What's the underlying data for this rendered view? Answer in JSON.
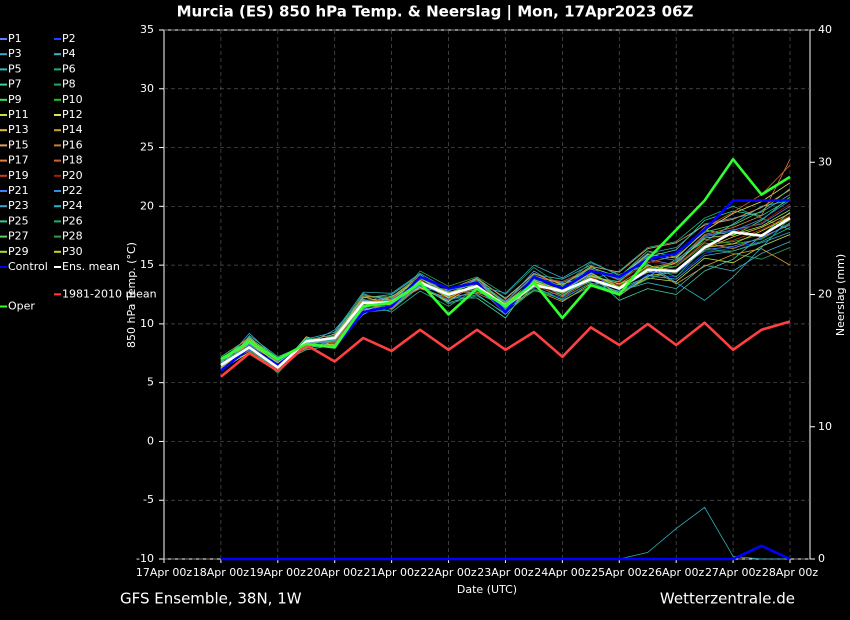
{
  "chart_data": {
    "type": "line",
    "title": "Murcia  (ES)  850 hPa Temp. & Neerslag | Mon, 17Apr2023 06Z",
    "xlabel": "Date (UTC)",
    "ylabel": "850 hPa Temp. (°C)",
    "y2label": "Neerslag (mm)",
    "footer_left": "GFS Ensemble, 38N, 1W",
    "footer_right": "Wetterzentrale.de",
    "categories": [
      "17Apr 00z",
      null,
      "18Apr 00z",
      null,
      "19Apr 00z",
      null,
      "20Apr 00z",
      null,
      "21Apr 00z",
      null,
      "22Apr 00z",
      null,
      "23Apr 00z",
      null,
      "24Apr 00z",
      null,
      "25Apr 00z",
      null,
      "26Apr 00z",
      null,
      "27Apr 00z",
      null,
      "28Apr 00z"
    ],
    "ylim": [
      -10,
      35
    ],
    "yticks": [
      -10,
      -5,
      0,
      5,
      10,
      15,
      20,
      25,
      30,
      35
    ],
    "y2lim": [
      0,
      40
    ],
    "y2ticks": [
      0,
      10,
      20,
      30,
      40
    ],
    "grid": true,
    "series": [
      {
        "name": "P1",
        "color": "#5b7fff",
        "values": [
          null,
          null,
          6.2,
          8.4,
          6.8,
          8.0,
          9.0,
          12.0,
          12.2,
          13.0,
          12.8,
          13.8,
          11.0,
          14.0,
          13.5,
          14.5,
          13.8,
          15.5,
          15.0,
          17.5,
          18.0,
          18.5,
          20.0
        ]
      },
      {
        "name": "P2",
        "color": "#2040ff",
        "values": [
          null,
          null,
          6.8,
          7.8,
          6.2,
          8.6,
          8.2,
          11.2,
          11.5,
          14.0,
          12.0,
          12.8,
          12.0,
          13.0,
          12.2,
          13.5,
          12.5,
          14.2,
          14.0,
          16.0,
          16.5,
          17.0,
          18.2
        ]
      },
      {
        "name": "P3",
        "color": "#4aa0d0",
        "values": [
          null,
          null,
          6.5,
          8.5,
          7.0,
          8.0,
          9.2,
          12.5,
          12.0,
          13.8,
          13.0,
          13.5,
          11.8,
          14.5,
          13.0,
          14.8,
          14.0,
          16.0,
          16.5,
          18.5,
          19.0,
          19.5,
          21.0
        ]
      },
      {
        "name": "P4",
        "color": "#3fb0c0",
        "values": [
          null,
          null,
          7.0,
          8.2,
          6.0,
          8.8,
          8.0,
          11.0,
          11.2,
          13.2,
          11.8,
          12.5,
          10.8,
          13.2,
          12.0,
          13.2,
          12.8,
          13.5,
          13.0,
          15.0,
          14.5,
          16.0,
          17.0
        ]
      },
      {
        "name": "P5",
        "color": "#30c0c0",
        "values": [
          null,
          null,
          6.0,
          9.0,
          7.2,
          8.2,
          9.5,
          12.2,
          12.5,
          14.2,
          12.5,
          13.8,
          12.2,
          14.2,
          13.8,
          15.0,
          13.0,
          14.0,
          15.5,
          17.0,
          18.5,
          20.0,
          20.5
        ]
      },
      {
        "name": "P6",
        "color": "#20b080",
        "values": [
          null,
          null,
          6.6,
          7.5,
          6.4,
          8.5,
          8.8,
          11.8,
          11.0,
          12.8,
          11.5,
          13.0,
          11.2,
          12.8,
          12.5,
          13.8,
          14.5,
          16.5,
          17.0,
          19.0,
          20.0,
          19.0,
          18.0
        ]
      },
      {
        "name": "P7",
        "color": "#40d0a0",
        "values": [
          null,
          null,
          7.2,
          8.8,
          6.6,
          7.8,
          8.2,
          10.8,
          12.0,
          13.5,
          12.2,
          12.2,
          10.5,
          13.8,
          12.8,
          14.2,
          12.0,
          13.0,
          12.5,
          14.5,
          15.5,
          17.5,
          19.5
        ]
      },
      {
        "name": "P8",
        "color": "#30a060",
        "values": [
          null,
          null,
          6.4,
          8.0,
          5.8,
          8.4,
          9.0,
          12.6,
          11.6,
          14.5,
          13.2,
          14.0,
          12.5,
          14.8,
          13.2,
          15.2,
          14.2,
          15.0,
          14.0,
          16.5,
          16.0,
          15.5,
          16.5
        ]
      },
      {
        "name": "P9",
        "color": "#40e060",
        "values": [
          null,
          null,
          6.8,
          8.6,
          6.8,
          8.2,
          8.6,
          11.4,
          12.4,
          13.2,
          12.0,
          13.4,
          11.6,
          13.6,
          12.6,
          13.6,
          13.6,
          15.6,
          16.0,
          18.0,
          17.5,
          18.8,
          20.8
        ]
      },
      {
        "name": "P10",
        "color": "#20c020",
        "values": [
          null,
          null,
          6.3,
          7.9,
          6.3,
          8.7,
          8.4,
          11.6,
          11.4,
          13.6,
          12.6,
          12.9,
          11.4,
          13.1,
          13.1,
          14.4,
          13.0,
          14.6,
          15.2,
          17.2,
          16.8,
          17.2,
          18.6
        ]
      },
      {
        "name": "P11",
        "color": "#c0e040",
        "values": [
          null,
          null,
          6.9,
          8.3,
          6.7,
          8.1,
          8.9,
          11.9,
          12.1,
          13.9,
          12.4,
          13.1,
          11.7,
          13.7,
          12.4,
          13.9,
          12.6,
          13.9,
          13.6,
          15.6,
          15.2,
          16.6,
          17.6
        ]
      },
      {
        "name": "P12",
        "color": "#e0e060",
        "values": [
          null,
          null,
          6.1,
          7.6,
          6.1,
          8.9,
          8.1,
          11.1,
          11.9,
          13.1,
          11.9,
          13.6,
          11.1,
          13.4,
          12.9,
          14.6,
          13.9,
          15.9,
          15.6,
          17.9,
          19.4,
          20.4,
          22.0
        ]
      },
      {
        "name": "P13",
        "color": "#e0c040",
        "values": [
          null,
          null,
          6.7,
          8.7,
          6.9,
          8.3,
          8.7,
          12.3,
          11.7,
          13.4,
          12.7,
          12.7,
          11.9,
          14.1,
          13.4,
          14.1,
          12.4,
          14.1,
          14.4,
          16.4,
          17.4,
          18.2,
          19.4
        ]
      },
      {
        "name": "P14",
        "color": "#d0a030",
        "values": [
          null,
          null,
          7.1,
          8.1,
          6.5,
          8.0,
          8.3,
          11.3,
          12.3,
          14.1,
          12.1,
          13.3,
          11.3,
          12.9,
          11.9,
          13.4,
          13.4,
          14.9,
          13.4,
          14.9,
          15.9,
          16.4,
          15.0
        ]
      },
      {
        "name": "P15",
        "color": "#e0a060",
        "values": [
          null,
          null,
          6.4,
          8.4,
          6.2,
          8.6,
          9.1,
          12.1,
          11.3,
          13.3,
          12.9,
          13.9,
          12.1,
          14.3,
          13.3,
          14.9,
          14.4,
          16.4,
          16.9,
          18.4,
          18.9,
          19.9,
          21.4
        ]
      },
      {
        "name": "P16",
        "color": "#c08040",
        "values": [
          null,
          null,
          6.6,
          7.7,
          6.6,
          8.4,
          8.5,
          11.7,
          12.0,
          13.7,
          12.3,
          12.6,
          11.5,
          13.3,
          12.3,
          13.7,
          13.1,
          14.4,
          14.9,
          16.9,
          16.4,
          17.4,
          18.4
        ]
      },
      {
        "name": "P17",
        "color": "#e08040",
        "values": [
          null,
          null,
          6.9,
          8.9,
          6.8,
          7.9,
          8.6,
          11.2,
          11.8,
          13.0,
          12.2,
          13.2,
          10.9,
          13.9,
          13.0,
          14.3,
          12.9,
          14.7,
          15.3,
          17.6,
          18.2,
          19.2,
          24.0
        ]
      },
      {
        "name": "P18",
        "color": "#d06030",
        "values": [
          null,
          null,
          6.2,
          8.2,
          6.3,
          8.5,
          8.9,
          12.4,
          12.2,
          14.0,
          12.6,
          13.7,
          11.9,
          14.0,
          13.6,
          14.7,
          13.7,
          15.2,
          15.8,
          18.2,
          19.5,
          21.0,
          23.5
        ]
      },
      {
        "name": "P19",
        "color": "#c04020",
        "values": [
          null,
          null,
          6.5,
          8.0,
          6.5,
          8.3,
          8.4,
          11.5,
          11.6,
          13.5,
          12.5,
          13.0,
          11.5,
          13.5,
          12.7,
          14.0,
          13.3,
          14.6,
          14.6,
          16.6,
          17.1,
          18.0,
          19.2
        ]
      },
      {
        "name": "P20",
        "color": "#a02010",
        "values": [
          null,
          null,
          7.0,
          8.5,
          6.7,
          8.1,
          8.8,
          11.9,
          12.0,
          13.8,
          12.1,
          13.4,
          11.8,
          13.2,
          12.5,
          13.9,
          13.5,
          15.3,
          15.0,
          17.0,
          17.8,
          18.6,
          20.2
        ]
      },
      {
        "name": "P21",
        "color": "#4080ff",
        "values": [
          null,
          null,
          6.3,
          8.3,
          6.4,
          8.6,
          8.3,
          11.3,
          11.5,
          13.3,
          12.4,
          13.1,
          11.3,
          13.6,
          12.9,
          14.2,
          13.0,
          14.4,
          14.3,
          16.3,
          16.6,
          17.3,
          18.5
        ]
      },
      {
        "name": "P22",
        "color": "#3090e0",
        "values": [
          null,
          null,
          6.7,
          7.8,
          6.8,
          8.2,
          8.7,
          11.6,
          12.1,
          13.6,
          12.8,
          13.6,
          11.9,
          14.1,
          13.1,
          14.6,
          13.8,
          15.8,
          15.4,
          17.4,
          17.9,
          18.9,
          20.5
        ]
      },
      {
        "name": "P23",
        "color": "#40a0d0",
        "values": [
          null,
          null,
          6.4,
          9.2,
          6.9,
          8.4,
          8.6,
          12.0,
          11.7,
          13.2,
          12.0,
          12.9,
          11.2,
          13.4,
          12.6,
          13.7,
          12.7,
          14.1,
          13.8,
          15.8,
          16.2,
          16.9,
          17.8
        ]
      },
      {
        "name": "P24",
        "color": "#30b0c0",
        "values": [
          null,
          null,
          6.8,
          8.1,
          6.0,
          8.7,
          9.3,
          12.7,
          12.6,
          14.3,
          12.9,
          13.3,
          12.6,
          15.0,
          13.9,
          15.3,
          14.1,
          15.1,
          13.5,
          12.0,
          14.0,
          16.5,
          19.0
        ],
        "precip": [
          null,
          null,
          0,
          0,
          0,
          0,
          0,
          0,
          0,
          0,
          0,
          0,
          0,
          0,
          0,
          0,
          0,
          0.5,
          2.3,
          3.9,
          0.2,
          0,
          0
        ]
      },
      {
        "name": "P25",
        "color": "#30d0a0",
        "values": [
          null,
          null,
          6.2,
          8.6,
          6.6,
          8.0,
          8.2,
          11.4,
          11.9,
          13.7,
          12.3,
          13.9,
          11.6,
          13.8,
          12.4,
          14.0,
          13.6,
          15.7,
          16.3,
          18.8,
          19.6,
          19.2,
          20.6
        ]
      },
      {
        "name": "P26",
        "color": "#20b070",
        "values": [
          null,
          null,
          6.9,
          7.7,
          6.2,
          8.8,
          8.5,
          11.1,
          11.4,
          13.4,
          11.7,
          12.4,
          10.9,
          12.9,
          12.1,
          13.5,
          12.6,
          13.8,
          14.6,
          16.2,
          16.2,
          17.0,
          18.2
        ]
      },
      {
        "name": "P27",
        "color": "#60d060",
        "values": [
          null,
          null,
          6.5,
          8.8,
          7.1,
          8.1,
          9.0,
          12.3,
          12.3,
          13.9,
          12.6,
          13.5,
          11.8,
          13.7,
          13.3,
          14.8,
          14.0,
          16.2,
          15.7,
          17.8,
          18.4,
          19.6,
          21.5
        ]
      },
      {
        "name": "P28",
        "color": "#30a040",
        "values": [
          null,
          null,
          6.6,
          8.2,
          6.4,
          8.5,
          8.7,
          11.8,
          11.8,
          13.5,
          12.4,
          13.2,
          11.4,
          13.3,
          12.8,
          13.8,
          13.2,
          14.8,
          14.9,
          16.7,
          17.0,
          17.6,
          18.8
        ]
      },
      {
        "name": "P29",
        "color": "#a0e040",
        "values": [
          null,
          null,
          7.1,
          8.4,
          6.7,
          8.3,
          8.2,
          11.6,
          12.0,
          13.4,
          12.7,
          13.1,
          11.7,
          13.5,
          12.6,
          14.1,
          13.4,
          14.4,
          15.2,
          17.3,
          17.6,
          18.3,
          19.7
        ]
      },
      {
        "name": "P30",
        "color": "#d0d020",
        "values": [
          null,
          null,
          6.3,
          7.9,
          6.3,
          8.6,
          8.8,
          11.9,
          11.6,
          13.7,
          12.2,
          13.5,
          11.5,
          13.6,
          12.9,
          14.3,
          13.1,
          15.0,
          14.4,
          16.5,
          16.8,
          17.9,
          19.1
        ]
      },
      {
        "name": "Control",
        "color": "#0000ff",
        "values": [
          null,
          null,
          6.0,
          8.0,
          6.5,
          8.3,
          8.0,
          11.0,
          11.5,
          14.0,
          13.0,
          13.5,
          11.0,
          14.0,
          13.0,
          14.5,
          14.0,
          15.5,
          16.0,
          18.0,
          20.5,
          20.5,
          20.5
        ],
        "precip": [
          null,
          null,
          0,
          0,
          0,
          0,
          0,
          0,
          0,
          0,
          0,
          0,
          0,
          0,
          0,
          0,
          0,
          0,
          0,
          0,
          0,
          1.0,
          0
        ]
      },
      {
        "name": "Ens. mean",
        "color": "#ffffff",
        "values": [
          null,
          null,
          6.5,
          8.0,
          6.3,
          8.5,
          8.8,
          11.8,
          11.8,
          13.5,
          12.5,
          13.2,
          11.5,
          13.3,
          12.8,
          13.8,
          13.0,
          14.6,
          14.5,
          16.5,
          17.8,
          17.5,
          19.0
        ]
      },
      {
        "name": "1981-2010 mean",
        "color": "#ff4040",
        "values": [
          null,
          null,
          5.5,
          7.5,
          6.0,
          8.2,
          6.8,
          8.8,
          7.7,
          9.5,
          7.8,
          9.5,
          7.8,
          9.3,
          7.2,
          9.7,
          8.2,
          10.0,
          8.2,
          10.1,
          7.8,
          9.5,
          10.2
        ]
      },
      {
        "name": "Oper",
        "color": "#30ff30",
        "values": [
          null,
          null,
          7.0,
          8.5,
          7.0,
          8.3,
          8.0,
          11.5,
          11.8,
          13.5,
          10.8,
          13.0,
          11.5,
          13.5,
          10.5,
          13.3,
          12.5,
          15.5,
          18.0,
          20.5,
          24.0,
          21.0,
          22.5
        ]
      }
    ]
  }
}
